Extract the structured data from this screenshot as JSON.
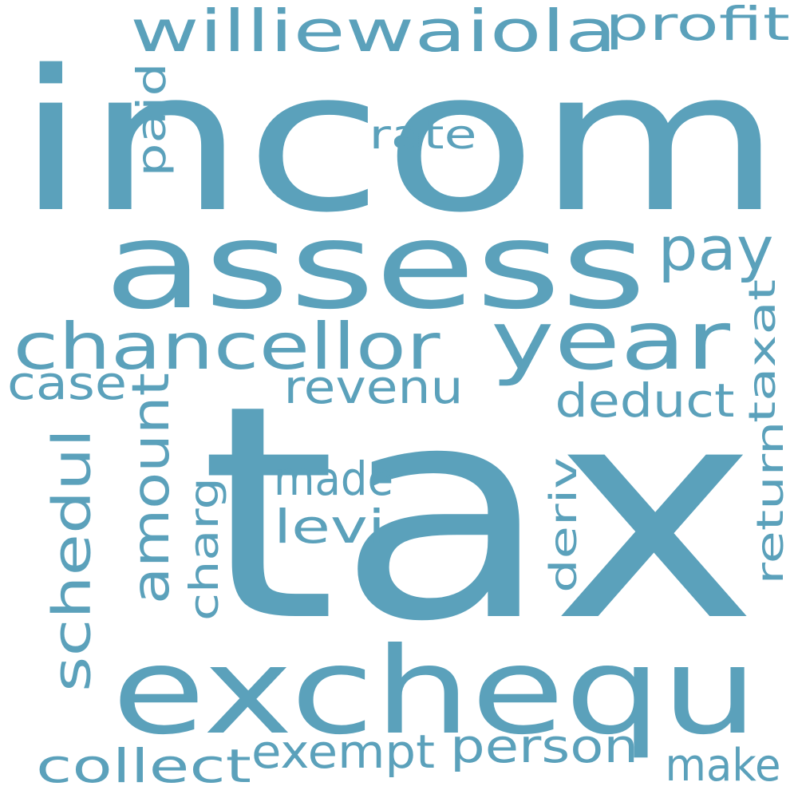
{
  "word_cloud": {
    "color": "#5ba1bb",
    "background": "#ffffff",
    "words": [
      {
        "name": "word-incom",
        "text": "incom"
      },
      {
        "name": "word-tax",
        "text": "tax"
      },
      {
        "name": "word-assess",
        "text": "assess"
      },
      {
        "name": "word-exchequ",
        "text": "exchequ"
      },
      {
        "name": "word-year",
        "text": "year"
      },
      {
        "name": "word-chancellor",
        "text": "chancellor"
      },
      {
        "name": "word-williewaiola",
        "text": "williewaiola"
      },
      {
        "name": "word-profit",
        "text": "profit"
      },
      {
        "name": "word-paid",
        "text": "paid"
      },
      {
        "name": "word-rate",
        "text": "rate"
      },
      {
        "name": "word-pay",
        "text": "pay"
      },
      {
        "name": "word-taxat",
        "text": "taxat"
      },
      {
        "name": "word-case",
        "text": "case"
      },
      {
        "name": "word-revenu",
        "text": "revenu"
      },
      {
        "name": "word-deduct",
        "text": "deduct"
      },
      {
        "name": "word-amount",
        "text": "amount"
      },
      {
        "name": "word-schedul",
        "text": "schedul"
      },
      {
        "name": "word-charg",
        "text": "charg"
      },
      {
        "name": "word-made",
        "text": "made"
      },
      {
        "name": "word-levi",
        "text": "levi"
      },
      {
        "name": "word-deriv",
        "text": "deriv"
      },
      {
        "name": "word-return",
        "text": "return"
      },
      {
        "name": "word-collect",
        "text": "collect"
      },
      {
        "name": "word-exempt",
        "text": "exempt"
      },
      {
        "name": "word-person",
        "text": "person"
      },
      {
        "name": "word-make",
        "text": "make"
      }
    ]
  }
}
